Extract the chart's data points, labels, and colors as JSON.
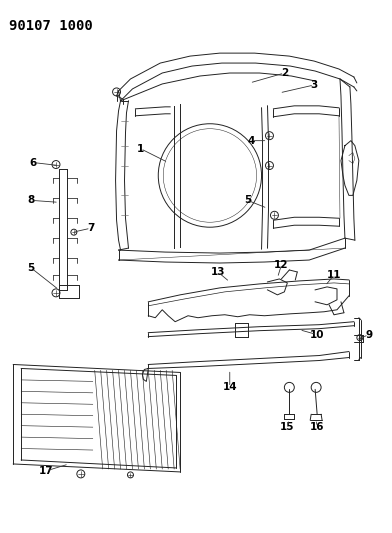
{
  "title": "90107 1000",
  "background_color": "#ffffff",
  "line_color": "#222222",
  "title_fontsize": 10,
  "label_fontsize": 7.5,
  "fig_w": 3.92,
  "fig_h": 5.33
}
